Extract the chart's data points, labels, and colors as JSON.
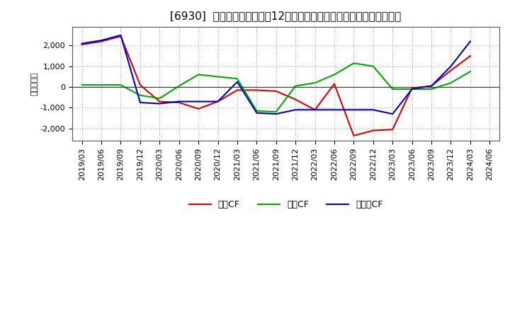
{
  "title": "[6930]  キャッシュフローの12か月移動合計の対前年同期増減額の推移",
  "ylabel": "（百万円）",
  "background_color": "#ffffff",
  "plot_bg_color": "#ffffff",
  "grid_color": "#aaaaaa",
  "x_labels": [
    "2019/03",
    "2019/06",
    "2019/09",
    "2019/12",
    "2020/03",
    "2020/06",
    "2020/09",
    "2020/12",
    "2021/03",
    "2021/06",
    "2021/09",
    "2021/12",
    "2022/03",
    "2022/06",
    "2022/09",
    "2022/12",
    "2023/03",
    "2023/06",
    "2023/09",
    "2023/12",
    "2024/03",
    "2024/06"
  ],
  "series": [
    {
      "name": "営業CF",
      "color": "#dd0000",
      "values": [
        2050,
        2200,
        2450,
        100,
        -700,
        -750,
        -1050,
        -700,
        -150,
        -150,
        -200,
        -600,
        -1100,
        150,
        -2350,
        -2100,
        -2050,
        -50,
        50,
        800,
        1500,
        null
      ]
    },
    {
      "name": "投資CF",
      "color": "#00aa00",
      "values": [
        100,
        100,
        100,
        -400,
        -550,
        50,
        600,
        500,
        400,
        -1150,
        -1200,
        50,
        200,
        600,
        1150,
        1000,
        -100,
        -100,
        -100,
        200,
        750,
        null
      ]
    },
    {
      "name": "フリーCF",
      "color": "#0000cc",
      "values": [
        2100,
        2250,
        2500,
        -750,
        -800,
        -700,
        -700,
        -700,
        250,
        -1250,
        -1300,
        -1100,
        -1100,
        -1100,
        -1100,
        -1100,
        -1300,
        -100,
        50,
        1000,
        2200,
        null
      ]
    }
  ],
  "ylim": [
    -2600,
    2900
  ],
  "yticks": [
    -2000,
    -1000,
    0,
    1000,
    2000
  ],
  "title_fontsize": 11,
  "axis_fontsize": 8,
  "legend_fontsize": 9
}
